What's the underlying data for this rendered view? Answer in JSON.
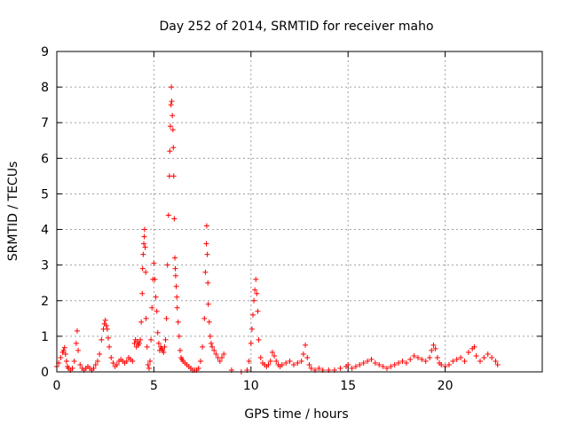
{
  "chart_data": {
    "type": "scatter",
    "title": "Day 252 of 2014, SRMTID for receiver maho",
    "xlabel": "GPS time / hours",
    "ylabel": "SRMTID / TECUs",
    "xlim": [
      0,
      25
    ],
    "ylim": [
      0,
      9
    ],
    "xticks": [
      0,
      5,
      10,
      15,
      20
    ],
    "yticks": [
      0,
      1,
      2,
      3,
      4,
      5,
      6,
      7,
      8,
      9
    ],
    "grid": true,
    "marker": "+",
    "color": "#ff0000",
    "series": [
      {
        "name": "SRMTID",
        "x": [
          0.0,
          0.1,
          0.2,
          0.3,
          0.35,
          0.4,
          0.45,
          0.5,
          0.55,
          0.6,
          0.7,
          0.8,
          0.9,
          1.0,
          1.05,
          1.1,
          1.2,
          1.3,
          1.4,
          1.5,
          1.6,
          1.7,
          1.8,
          1.9,
          2.0,
          2.1,
          2.2,
          2.3,
          2.4,
          2.45,
          2.5,
          2.55,
          2.6,
          2.65,
          2.7,
          2.8,
          2.9,
          3.0,
          3.1,
          3.2,
          3.3,
          3.4,
          3.5,
          3.6,
          3.7,
          3.8,
          3.9,
          4.0,
          4.05,
          4.1,
          4.15,
          4.2,
          4.25,
          4.3,
          4.35,
          4.4,
          4.42,
          4.45,
          4.48,
          4.5,
          4.52,
          4.55,
          4.58,
          4.6,
          4.65,
          4.7,
          4.75,
          4.8,
          4.85,
          4.9,
          4.95,
          5.0,
          5.05,
          5.1,
          5.15,
          5.2,
          5.25,
          5.3,
          5.35,
          5.4,
          5.45,
          5.5,
          5.55,
          5.6,
          5.65,
          5.7,
          5.75,
          5.8,
          5.82,
          5.85,
          5.88,
          5.9,
          5.92,
          5.95,
          5.98,
          6.0,
          6.02,
          6.05,
          6.08,
          6.1,
          6.12,
          6.15,
          6.18,
          6.2,
          6.25,
          6.3,
          6.35,
          6.4,
          6.45,
          6.5,
          6.6,
          6.7,
          6.8,
          6.9,
          7.0,
          7.1,
          7.2,
          7.3,
          7.4,
          7.5,
          7.6,
          7.65,
          7.7,
          7.72,
          7.75,
          7.78,
          7.8,
          7.85,
          7.9,
          7.95,
          8.0,
          8.1,
          8.2,
          8.3,
          8.4,
          8.5,
          8.6,
          9.0,
          9.5,
          9.8,
          9.9,
          10.0,
          10.05,
          10.1,
          10.15,
          10.2,
          10.25,
          10.3,
          10.35,
          10.4,
          10.5,
          10.6,
          10.7,
          10.8,
          10.9,
          11.0,
          11.1,
          11.2,
          11.3,
          11.4,
          11.5,
          11.6,
          11.8,
          12.0,
          12.2,
          12.4,
          12.6,
          12.7,
          12.8,
          12.9,
          13.0,
          13.1,
          13.3,
          13.5,
          13.7,
          14.0,
          14.3,
          14.6,
          14.9,
          15.0,
          15.2,
          15.4,
          15.6,
          15.8,
          16.0,
          16.2,
          16.4,
          16.6,
          16.8,
          17.0,
          17.2,
          17.4,
          17.6,
          17.8,
          18.0,
          18.2,
          18.4,
          18.6,
          18.8,
          19.0,
          19.2,
          19.3,
          19.4,
          19.5,
          19.6,
          19.7,
          19.8,
          20.0,
          20.2,
          20.4,
          20.6,
          20.8,
          21.0,
          21.2,
          21.4,
          21.5,
          21.6,
          21.8,
          22.0,
          22.2,
          22.4,
          22.6,
          22.7
        ],
        "y": [
          0.15,
          0.25,
          0.4,
          0.55,
          0.6,
          0.68,
          0.5,
          0.3,
          0.15,
          0.1,
          0.05,
          0.1,
          0.3,
          0.8,
          1.15,
          0.6,
          0.2,
          0.1,
          0.05,
          0.1,
          0.15,
          0.1,
          0.05,
          0.1,
          0.2,
          0.3,
          0.5,
          0.9,
          1.2,
          1.35,
          1.45,
          1.3,
          1.2,
          0.95,
          0.7,
          0.4,
          0.25,
          0.15,
          0.2,
          0.3,
          0.35,
          0.3,
          0.25,
          0.3,
          0.4,
          0.35,
          0.3,
          0.8,
          0.9,
          0.7,
          0.85,
          0.75,
          0.8,
          0.9,
          1.4,
          2.2,
          2.9,
          3.3,
          3.6,
          3.8,
          4.0,
          3.5,
          2.8,
          1.5,
          0.7,
          0.2,
          0.1,
          0.3,
          0.9,
          1.8,
          2.6,
          3.05,
          2.6,
          2.1,
          1.7,
          1.1,
          0.8,
          0.6,
          0.7,
          0.65,
          0.6,
          0.55,
          0.7,
          0.9,
          1.5,
          3.0,
          4.4,
          5.5,
          6.2,
          6.9,
          7.5,
          8.0,
          7.6,
          7.2,
          6.8,
          6.3,
          5.5,
          4.3,
          3.2,
          2.9,
          2.7,
          2.4,
          2.1,
          1.8,
          1.4,
          1.0,
          0.6,
          0.4,
          0.35,
          0.3,
          0.25,
          0.2,
          0.15,
          0.1,
          0.05,
          0.05,
          0.05,
          0.1,
          0.3,
          0.7,
          1.5,
          2.8,
          3.6,
          4.1,
          3.3,
          2.5,
          1.9,
          1.4,
          1.0,
          0.8,
          0.7,
          0.6,
          0.5,
          0.4,
          0.3,
          0.4,
          0.5,
          0.05,
          0.0,
          0.05,
          0.3,
          0.8,
          1.2,
          1.6,
          2.0,
          2.3,
          2.6,
          2.2,
          1.7,
          0.9,
          0.4,
          0.25,
          0.2,
          0.15,
          0.2,
          0.3,
          0.55,
          0.45,
          0.3,
          0.2,
          0.15,
          0.2,
          0.25,
          0.3,
          0.2,
          0.25,
          0.3,
          0.5,
          0.75,
          0.4,
          0.2,
          0.1,
          0.05,
          0.1,
          0.05,
          0.05,
          0.05,
          0.1,
          0.15,
          0.2,
          0.1,
          0.15,
          0.2,
          0.25,
          0.3,
          0.35,
          0.25,
          0.2,
          0.15,
          0.1,
          0.15,
          0.2,
          0.25,
          0.3,
          0.25,
          0.35,
          0.45,
          0.4,
          0.35,
          0.3,
          0.4,
          0.6,
          0.75,
          0.65,
          0.4,
          0.25,
          0.2,
          0.15,
          0.2,
          0.3,
          0.35,
          0.4,
          0.3,
          0.55,
          0.65,
          0.7,
          0.45,
          0.3,
          0.4,
          0.5,
          0.4,
          0.3,
          0.2
        ]
      }
    ]
  }
}
